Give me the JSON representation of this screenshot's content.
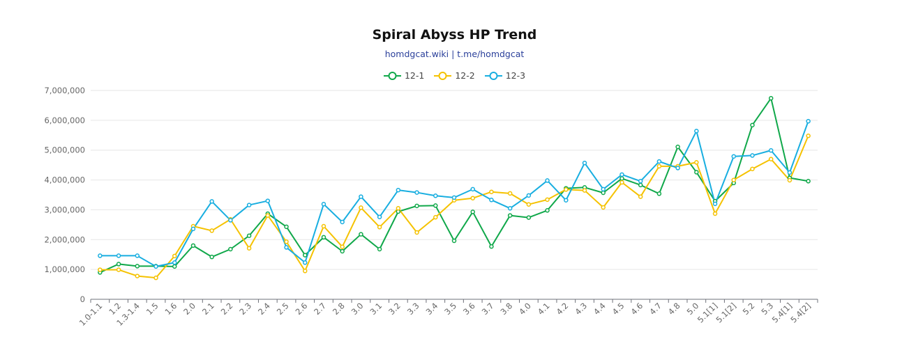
{
  "chart_data": {
    "type": "line",
    "title": "Spiral Abyss HP Trend",
    "subtitle": "homdgcat.wiki | t.me/homdgcat",
    "ylim": [
      0,
      7000000
    ],
    "y_ticks": [
      0,
      1000000,
      2000000,
      3000000,
      4000000,
      5000000,
      6000000,
      7000000
    ],
    "y_tick_labels": [
      "0",
      "1,000,000",
      "2,000,000",
      "3,000,000",
      "4,000,000",
      "5,000,000",
      "6,000,000",
      "7,000,000"
    ],
    "grid": true,
    "legend_position": "top-center",
    "categories": [
      "1.0-1.1",
      "1.2",
      "1.3-1.4",
      "1.5",
      "1.6",
      "2.0",
      "2.1",
      "2.2",
      "2.3",
      "2.4",
      "2.5",
      "2.6",
      "2.7",
      "2.8",
      "3.0",
      "3.1",
      "3.2",
      "3.3",
      "3.4",
      "3.5",
      "3.6",
      "3.7",
      "3.8",
      "4.0",
      "4.1",
      "4.2",
      "4.3",
      "4.4",
      "4.5",
      "4.6",
      "4.7",
      "4.8",
      "5.0",
      "5.1[1]",
      "5.1[2]",
      "5.2",
      "5.3",
      "5.4[1]",
      "5.4[2]"
    ],
    "series": [
      {
        "name": "12-1",
        "color": "#10a84a",
        "values": [
          900000,
          1180000,
          1110000,
          1110000,
          1100000,
          1800000,
          1420000,
          1680000,
          2130000,
          2870000,
          2430000,
          1480000,
          2080000,
          1610000,
          2180000,
          1680000,
          2940000,
          3130000,
          3140000,
          1960000,
          2930000,
          1770000,
          2810000,
          2740000,
          2980000,
          3720000,
          3750000,
          3570000,
          4050000,
          3830000,
          3540000,
          5110000,
          4260000,
          3290000,
          3900000,
          5840000,
          6740000,
          4070000,
          3960000
        ]
      },
      {
        "name": "12-2",
        "color": "#f5c200",
        "values": [
          990000,
          990000,
          780000,
          720000,
          1450000,
          2450000,
          2300000,
          2680000,
          1710000,
          2810000,
          1930000,
          950000,
          2450000,
          1760000,
          3070000,
          2420000,
          3050000,
          2240000,
          2750000,
          3320000,
          3390000,
          3600000,
          3550000,
          3180000,
          3340000,
          3680000,
          3650000,
          3080000,
          3920000,
          3440000,
          4460000,
          4460000,
          4590000,
          2870000,
          4000000,
          4370000,
          4700000,
          3990000,
          5480000
        ]
      },
      {
        "name": "12-3",
        "color": "#18aee0",
        "values": [
          1460000,
          1460000,
          1460000,
          1100000,
          1230000,
          2360000,
          3280000,
          2650000,
          3160000,
          3300000,
          1740000,
          1230000,
          3190000,
          2590000,
          3440000,
          2760000,
          3660000,
          3580000,
          3470000,
          3410000,
          3690000,
          3330000,
          3050000,
          3480000,
          3980000,
          3320000,
          4570000,
          3690000,
          4180000,
          3960000,
          4620000,
          4400000,
          5640000,
          3200000,
          4790000,
          4820000,
          4990000,
          4250000,
          5970000
        ]
      }
    ]
  }
}
